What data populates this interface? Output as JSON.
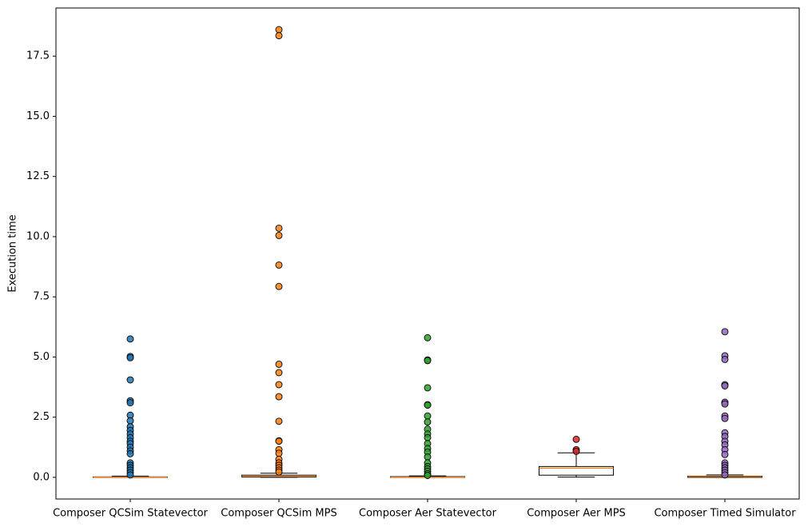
{
  "chart_data": {
    "type": "box",
    "ylabel": "Execution time",
    "categories": [
      "Composer QCSim Statevector",
      "Composer QCSim MPS",
      "Composer Aer Statevector",
      "Composer Aer MPS",
      "Composer Timed Simulator"
    ],
    "boxes": [
      {
        "color": "#1f77b4",
        "whislo": 0,
        "q1": 0,
        "median": 0.01,
        "q3": 0.02,
        "whishi": 0.05,
        "outliers": [
          5.75,
          5.02,
          4.97,
          4.05,
          3.18,
          3.1,
          2.58,
          2.35,
          2.1,
          1.95,
          1.8,
          1.65,
          1.5,
          1.4,
          1.25,
          1.1,
          0.98,
          0.6,
          0.5,
          0.4,
          0.3,
          0.2,
          0.1
        ]
      },
      {
        "color": "#ff7f0e",
        "whislo": 0,
        "q1": 0.01,
        "median": 0.04,
        "q3": 0.09,
        "whishi": 0.17,
        "outliers": [
          18.6,
          18.35,
          10.35,
          10.05,
          8.82,
          7.93,
          4.7,
          4.35,
          3.85,
          3.35,
          2.33,
          1.52,
          1.5,
          1.15,
          1.0,
          0.75,
          0.6,
          0.5,
          0.4,
          0.3,
          0.22
        ]
      },
      {
        "color": "#2ca02c",
        "whislo": 0,
        "q1": 0,
        "median": 0.01,
        "q3": 0.03,
        "whishi": 0.06,
        "outliers": [
          5.8,
          4.88,
          4.85,
          3.72,
          3.02,
          3.0,
          2.55,
          2.3,
          2.0,
          1.8,
          1.65,
          1.4,
          1.2,
          1.05,
          0.85,
          0.6,
          0.45,
          0.35,
          0.25,
          0.15,
          0.08
        ]
      },
      {
        "color": "#d62728",
        "whislo": 0.01,
        "q1": 0.09,
        "median": 0.38,
        "q3": 0.45,
        "whishi": 1.02,
        "outliers": [
          1.58,
          1.15,
          1.08
        ]
      },
      {
        "color": "#9467bd",
        "whislo": 0,
        "q1": 0,
        "median": 0.03,
        "q3": 0.05,
        "whishi": 0.1,
        "outliers": [
          6.05,
          5.05,
          4.9,
          3.85,
          3.8,
          3.12,
          3.05,
          2.55,
          2.45,
          1.85,
          1.7,
          1.5,
          1.35,
          1.15,
          0.95,
          0.6,
          0.5,
          0.4,
          0.3,
          0.2,
          0.1
        ]
      }
    ],
    "median_color": "#ff7f0e",
    "ylim": [
      -0.9,
      19.5
    ],
    "yticks": [
      {
        "value": 0,
        "label": "0.0"
      },
      2.5,
      {
        "value": 5,
        "label": "5.0"
      },
      7.5,
      {
        "value": 10,
        "label": "10.0"
      },
      12.5,
      {
        "value": 15,
        "label": "15.0"
      },
      17.5
    ]
  }
}
